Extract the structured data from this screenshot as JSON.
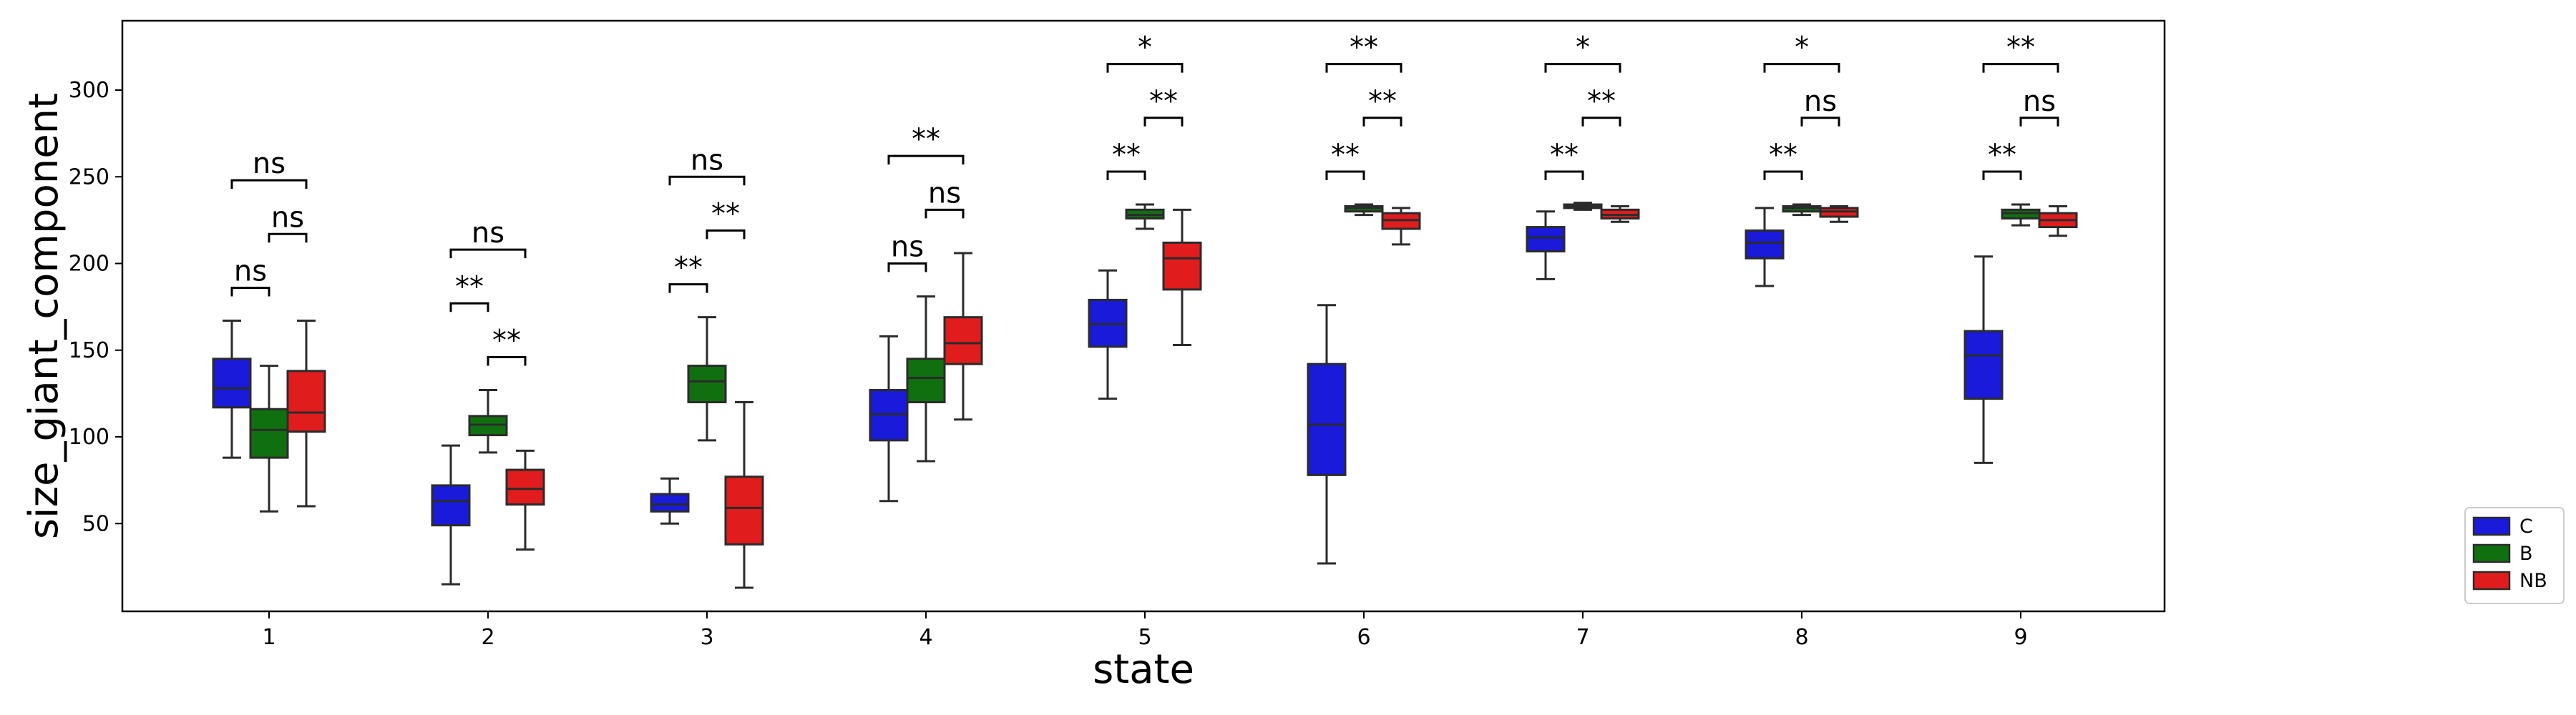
{
  "chart_data": {
    "type": "box",
    "xlabel": "state",
    "ylabel": "size_giant_component",
    "ylim": [
      0,
      340
    ],
    "yticks": [
      50,
      100,
      150,
      200,
      250,
      300
    ],
    "grid": false,
    "legend_position": "bottom-right-outside",
    "categories": [
      "1",
      "2",
      "3",
      "4",
      "5",
      "6",
      "7",
      "8",
      "9"
    ],
    "series": [
      {
        "name": "C",
        "color": "#1a1adb",
        "boxes": [
          {
            "whislo": 88,
            "q1": 117,
            "med": 128,
            "q3": 145,
            "whishi": 167
          },
          {
            "whislo": 15,
            "q1": 49,
            "med": 63,
            "q3": 72,
            "whishi": 95
          },
          {
            "whislo": 50,
            "q1": 57,
            "med": 61,
            "q3": 67,
            "whishi": 76
          },
          {
            "whislo": 63,
            "q1": 98,
            "med": 113,
            "q3": 127,
            "whishi": 158
          },
          {
            "whislo": 122,
            "q1": 152,
            "med": 165,
            "q3": 179,
            "whishi": 196
          },
          {
            "whislo": 27,
            "q1": 78,
            "med": 107,
            "q3": 142,
            "whishi": 176
          },
          {
            "whislo": 191,
            "q1": 207,
            "med": 215,
            "q3": 221,
            "whishi": 230
          },
          {
            "whislo": 187,
            "q1": 203,
            "med": 212,
            "q3": 219,
            "whishi": 232
          },
          {
            "whislo": 85,
            "q1": 122,
            "med": 147,
            "q3": 161,
            "whishi": 204
          }
        ]
      },
      {
        "name": "B",
        "color": "#107010",
        "boxes": [
          {
            "whislo": 57,
            "q1": 88,
            "med": 104,
            "q3": 116,
            "whishi": 141
          },
          {
            "whislo": 91,
            "q1": 101,
            "med": 107,
            "q3": 112,
            "whishi": 127
          },
          {
            "whislo": 98,
            "q1": 120,
            "med": 132,
            "q3": 141,
            "whishi": 169
          },
          {
            "whislo": 86,
            "q1": 120,
            "med": 134,
            "q3": 145,
            "whishi": 181
          },
          {
            "whislo": 220,
            "q1": 226,
            "med": 228,
            "q3": 231,
            "whishi": 234
          },
          {
            "whislo": 228,
            "q1": 230,
            "med": 232,
            "q3": 233,
            "whishi": 234
          },
          {
            "whislo": 231,
            "q1": 232,
            "med": 233,
            "q3": 234,
            "whishi": 235
          },
          {
            "whislo": 228,
            "q1": 230,
            "med": 232,
            "q3": 233,
            "whishi": 234
          },
          {
            "whislo": 222,
            "q1": 226,
            "med": 229,
            "q3": 231,
            "whishi": 234
          }
        ]
      },
      {
        "name": "NB",
        "color": "#e01c1c",
        "boxes": [
          {
            "whislo": 60,
            "q1": 103,
            "med": 114,
            "q3": 138,
            "whishi": 167
          },
          {
            "whislo": 35,
            "q1": 61,
            "med": 70,
            "q3": 81,
            "whishi": 92
          },
          {
            "whislo": 13,
            "q1": 38,
            "med": 59,
            "q3": 77,
            "whishi": 120
          },
          {
            "whislo": 110,
            "q1": 142,
            "med": 154,
            "q3": 169,
            "whishi": 206
          },
          {
            "whislo": 153,
            "q1": 185,
            "med": 203,
            "q3": 212,
            "whishi": 231
          },
          {
            "whislo": 211,
            "q1": 220,
            "med": 225,
            "q3": 229,
            "whishi": 232
          },
          {
            "whislo": 224,
            "q1": 226,
            "med": 228,
            "q3": 231,
            "whishi": 233
          },
          {
            "whislo": 224,
            "q1": 227,
            "med": 230,
            "q3": 232,
            "whishi": 233
          },
          {
            "whislo": 216,
            "q1": 221,
            "med": 225,
            "q3": 229,
            "whishi": 233
          }
        ]
      }
    ],
    "annotations": [
      {
        "category": 0,
        "from": "C",
        "to": "B",
        "y": 186,
        "label": "ns"
      },
      {
        "category": 0,
        "from": "B",
        "to": "NB",
        "y": 217,
        "label": "ns"
      },
      {
        "category": 0,
        "from": "C",
        "to": "NB",
        "y": 248,
        "label": "ns"
      },
      {
        "category": 1,
        "from": "C",
        "to": "B",
        "y": 177,
        "label": "**"
      },
      {
        "category": 1,
        "from": "B",
        "to": "NB",
        "y": 146,
        "label": "**"
      },
      {
        "category": 1,
        "from": "C",
        "to": "NB",
        "y": 208,
        "label": "ns"
      },
      {
        "category": 2,
        "from": "C",
        "to": "B",
        "y": 188,
        "label": "**"
      },
      {
        "category": 2,
        "from": "B",
        "to": "NB",
        "y": 219,
        "label": "**"
      },
      {
        "category": 2,
        "from": "C",
        "to": "NB",
        "y": 250,
        "label": "ns"
      },
      {
        "category": 3,
        "from": "C",
        "to": "B",
        "y": 200,
        "label": "ns"
      },
      {
        "category": 3,
        "from": "B",
        "to": "NB",
        "y": 231,
        "label": "ns"
      },
      {
        "category": 3,
        "from": "C",
        "to": "NB",
        "y": 262,
        "label": "**"
      },
      {
        "category": 4,
        "from": "C",
        "to": "B",
        "y": 253,
        "label": "**"
      },
      {
        "category": 4,
        "from": "B",
        "to": "NB",
        "y": 284,
        "label": "**"
      },
      {
        "category": 4,
        "from": "C",
        "to": "NB",
        "y": 315,
        "label": "*"
      },
      {
        "category": 5,
        "from": "C",
        "to": "B",
        "y": 253,
        "label": "**"
      },
      {
        "category": 5,
        "from": "B",
        "to": "NB",
        "y": 284,
        "label": "**"
      },
      {
        "category": 5,
        "from": "C",
        "to": "NB",
        "y": 315,
        "label": "**"
      },
      {
        "category": 6,
        "from": "C",
        "to": "B",
        "y": 253,
        "label": "**"
      },
      {
        "category": 6,
        "from": "B",
        "to": "NB",
        "y": 284,
        "label": "**"
      },
      {
        "category": 6,
        "from": "C",
        "to": "NB",
        "y": 315,
        "label": "*"
      },
      {
        "category": 7,
        "from": "C",
        "to": "B",
        "y": 253,
        "label": "**"
      },
      {
        "category": 7,
        "from": "B",
        "to": "NB",
        "y": 284,
        "label": "ns"
      },
      {
        "category": 7,
        "from": "C",
        "to": "NB",
        "y": 315,
        "label": "*"
      },
      {
        "category": 8,
        "from": "C",
        "to": "B",
        "y": 253,
        "label": "**"
      },
      {
        "category": 8,
        "from": "B",
        "to": "NB",
        "y": 284,
        "label": "ns"
      },
      {
        "category": 8,
        "from": "C",
        "to": "NB",
        "y": 315,
        "label": "**"
      }
    ]
  }
}
